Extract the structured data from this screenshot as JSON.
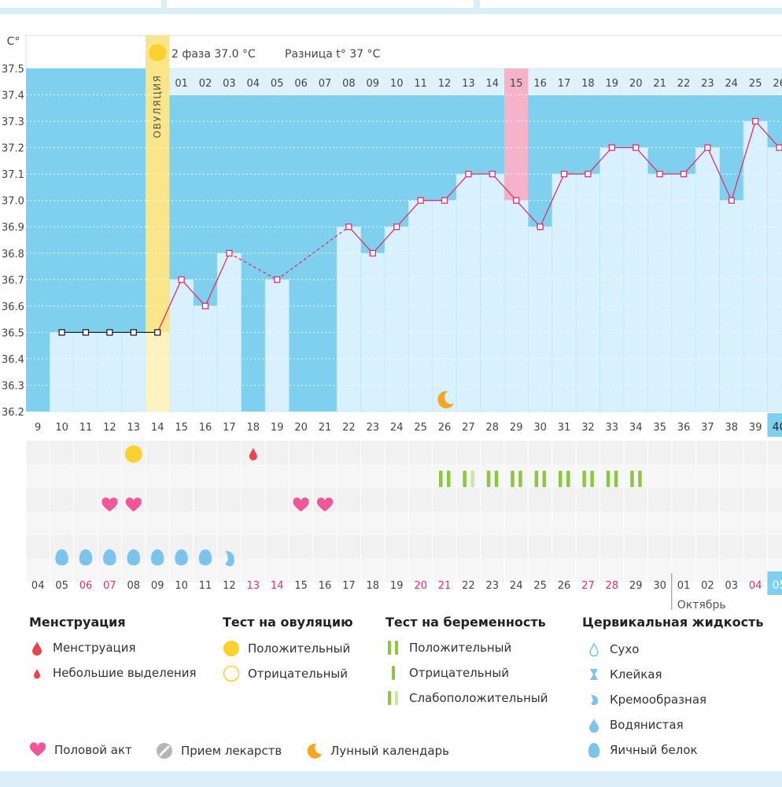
{
  "colors": {
    "graph_bg": "#7fd0ee",
    "high_bar": "#d9f1fd",
    "bar_edge": "#b8e4f7",
    "line": "#e0306a",
    "ovulation": "#fbe58a",
    "pink_day": "#f6b2c8",
    "green": "#8dc63f",
    "green_light": "#c9e6a7",
    "drop": "#7dc4ec",
    "heart": "#f0569a",
    "red": "#e9434f",
    "yellow": "#fbd12f",
    "orange": "#f6a623",
    "gray": "#b5b5b5"
  },
  "chart_data": {
    "type": "line",
    "y_unit": "C°",
    "ylim": [
      36.2,
      37.5
    ],
    "y_ticks": [
      "37.5",
      "37.4",
      "37.3",
      "37.2",
      "37.1",
      "37.0",
      "36.9",
      "36.8",
      "36.7",
      "36.6",
      "36.5",
      "36.4",
      "36.3",
      "36.2"
    ],
    "phase_text": "2 фаза 37.0 °C",
    "diff_text": "Разница t° 37 °C",
    "ovulation_label": "ОВУЛЯЦИЯ",
    "cycle_days": [
      "9",
      "10",
      "11",
      "12",
      "13",
      "14",
      "15",
      "16",
      "17",
      "18",
      "19",
      "20",
      "21",
      "22",
      "23",
      "24",
      "25",
      "26",
      "27",
      "28",
      "29",
      "30",
      "31",
      "32",
      "33",
      "34",
      "35",
      "36",
      "37",
      "38",
      "39",
      "40"
    ],
    "phase2_days": [
      "01",
      "02",
      "03",
      "04",
      "05",
      "06",
      "07",
      "08",
      "09",
      "10",
      "11",
      "12",
      "13",
      "14",
      "15",
      "16",
      "17",
      "18",
      "19",
      "20",
      "21",
      "22",
      "23",
      "24",
      "25",
      "26"
    ],
    "temperatures": [
      null,
      36.5,
      36.5,
      36.5,
      36.5,
      36.5,
      36.7,
      36.6,
      36.8,
      null,
      36.7,
      null,
      null,
      36.9,
      36.8,
      36.9,
      37.0,
      37.0,
      37.1,
      37.1,
      37.0,
      36.9,
      37.1,
      37.1,
      37.2,
      37.2,
      37.1,
      37.1,
      37.2,
      37.0,
      37.3,
      37.2
    ],
    "highlight_phase2_day": "15",
    "current_cycle_day": "40",
    "calendar_dates": [
      "04",
      "05",
      "06",
      "07",
      "08",
      "09",
      "10",
      "11",
      "12",
      "13",
      "14",
      "15",
      "16",
      "17",
      "18",
      "19",
      "20",
      "21",
      "22",
      "23",
      "24",
      "25",
      "26",
      "27",
      "28",
      "29",
      "30",
      "01",
      "02",
      "03",
      "04",
      "05"
    ],
    "calendar_red": [
      "06",
      "07",
      "13",
      "14",
      "20",
      "21",
      "27",
      "28",
      "04"
    ],
    "month_label": "Октябрь",
    "current_date": "05",
    "marks": {
      "moon_cycle_day": "26",
      "ovulation_test_positive_day": "13",
      "spotting_day": "18",
      "intercourse_days": [
        "12",
        "13",
        "20",
        "21"
      ],
      "pregnancy_positive_days": [
        "26",
        "28",
        "29",
        "30",
        "31",
        "32",
        "33",
        "34"
      ],
      "pregnancy_weak_day": "27",
      "watery_days": [
        "10",
        "11",
        "12",
        "13",
        "14",
        "15",
        "16"
      ],
      "creamy_day": "17"
    }
  },
  "legend": {
    "menstruation": {
      "title": "Менструация",
      "items": [
        "Менструация",
        "Небольшие выделения"
      ]
    },
    "ovulation_test": {
      "title": "Тест на овуляцию",
      "items": [
        "Положительный",
        "Отрицательный"
      ]
    },
    "pregnancy_test": {
      "title": "Тест на беременность",
      "items": [
        "Положительный",
        "Отрицательный",
        "Слабоположительный"
      ]
    },
    "cervical": {
      "title": "Цервикальная жидкость",
      "items": [
        "Сухо",
        "Клейкая",
        "Кремообразная",
        "Водянистая",
        "Яичный белок"
      ]
    },
    "other": {
      "items": [
        "Половой акт",
        "Прием лекарств",
        "Лунный календарь"
      ]
    }
  }
}
